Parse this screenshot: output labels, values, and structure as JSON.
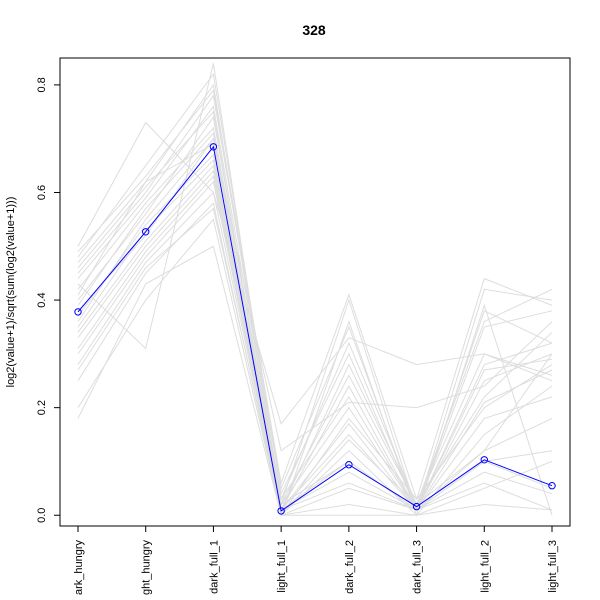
{
  "chart_data": {
    "type": "line",
    "title": "328",
    "xlabel": "",
    "ylabel": "log2(value+1)/sqrt(sum(log2(value+1)))",
    "ylim": [
      -0.02,
      0.85
    ],
    "yticks": [
      0.0,
      0.2,
      0.4,
      0.6,
      0.8
    ],
    "ytick_labels": [
      "0.0",
      "0.2",
      "0.4",
      "0.6",
      "0.8"
    ],
    "categories": [
      "ark_hungry",
      "ght_hungry",
      "dark_full_1",
      "light_full_1",
      "dark_full_2",
      "dark_full_3",
      "light_full_2",
      "light_full_3"
    ],
    "grid": false,
    "legend": "none",
    "highlight": {
      "color": "#0000ff",
      "values": [
        0.378,
        0.527,
        0.685,
        0.008,
        0.094,
        0.016,
        0.103,
        0.055
      ]
    },
    "background_color": "#dddddd",
    "background_series": [
      [
        0.38,
        0.52,
        0.7,
        0.01,
        0.1,
        0.01,
        0.1,
        0.05
      ],
      [
        0.45,
        0.6,
        0.78,
        0.05,
        0.35,
        0.01,
        0.38,
        0.32
      ],
      [
        0.3,
        0.48,
        0.62,
        0.01,
        0.28,
        0.02,
        0.3,
        0.25
      ],
      [
        0.42,
        0.58,
        0.72,
        0.03,
        0.22,
        0.01,
        0.25,
        0.3
      ],
      [
        0.47,
        0.62,
        0.8,
        0.02,
        0.4,
        0.01,
        0.42,
        0.4
      ],
      [
        0.25,
        0.45,
        0.58,
        0.0,
        0.18,
        0.03,
        0.2,
        0.28
      ],
      [
        0.35,
        0.53,
        0.66,
        0.01,
        0.15,
        0.01,
        0.28,
        0.32
      ],
      [
        0.2,
        0.4,
        0.55,
        0.0,
        0.05,
        0.01,
        0.06,
        0.01
      ],
      [
        0.48,
        0.65,
        0.82,
        0.04,
        0.3,
        0.01,
        0.35,
        0.38
      ],
      [
        0.4,
        0.56,
        0.74,
        0.02,
        0.26,
        0.02,
        0.22,
        0.34
      ],
      [
        0.33,
        0.5,
        0.64,
        0.0,
        0.12,
        0.0,
        0.15,
        0.24
      ],
      [
        0.28,
        0.47,
        0.6,
        0.01,
        0.08,
        0.01,
        0.1,
        0.12
      ],
      [
        0.44,
        0.59,
        0.76,
        0.03,
        0.32,
        0.02,
        0.36,
        0.42
      ],
      [
        0.36,
        0.55,
        0.7,
        0.02,
        0.2,
        0.01,
        0.18,
        0.22
      ],
      [
        0.18,
        0.43,
        0.5,
        0.0,
        0.02,
        0.0,
        0.02,
        0.01
      ],
      [
        0.5,
        0.73,
        0.6,
        0.17,
        0.33,
        0.28,
        0.3,
        0.26
      ],
      [
        0.46,
        0.61,
        0.75,
        0.0,
        0.36,
        0.0,
        0.39,
        0.0
      ],
      [
        0.39,
        0.57,
        0.71,
        0.01,
        0.24,
        0.01,
        0.27,
        0.29
      ],
      [
        0.31,
        0.49,
        0.63,
        0.0,
        0.14,
        0.02,
        0.12,
        0.18
      ],
      [
        0.43,
        0.31,
        0.84,
        0.02,
        0.1,
        0.01,
        0.12,
        0.3
      ],
      [
        0.27,
        0.46,
        0.57,
        0.01,
        0.06,
        0.01,
        0.08,
        0.04
      ],
      [
        0.41,
        0.62,
        0.69,
        0.12,
        0.21,
        0.2,
        0.24,
        0.36
      ],
      [
        0.37,
        0.54,
        0.67,
        0.0,
        0.0,
        0.0,
        0.05,
        0.1
      ],
      [
        0.49,
        0.63,
        0.79,
        0.06,
        0.41,
        0.03,
        0.44,
        0.39
      ],
      [
        0.34,
        0.51,
        0.65,
        0.01,
        0.17,
        0.01,
        0.21,
        0.27
      ]
    ]
  }
}
